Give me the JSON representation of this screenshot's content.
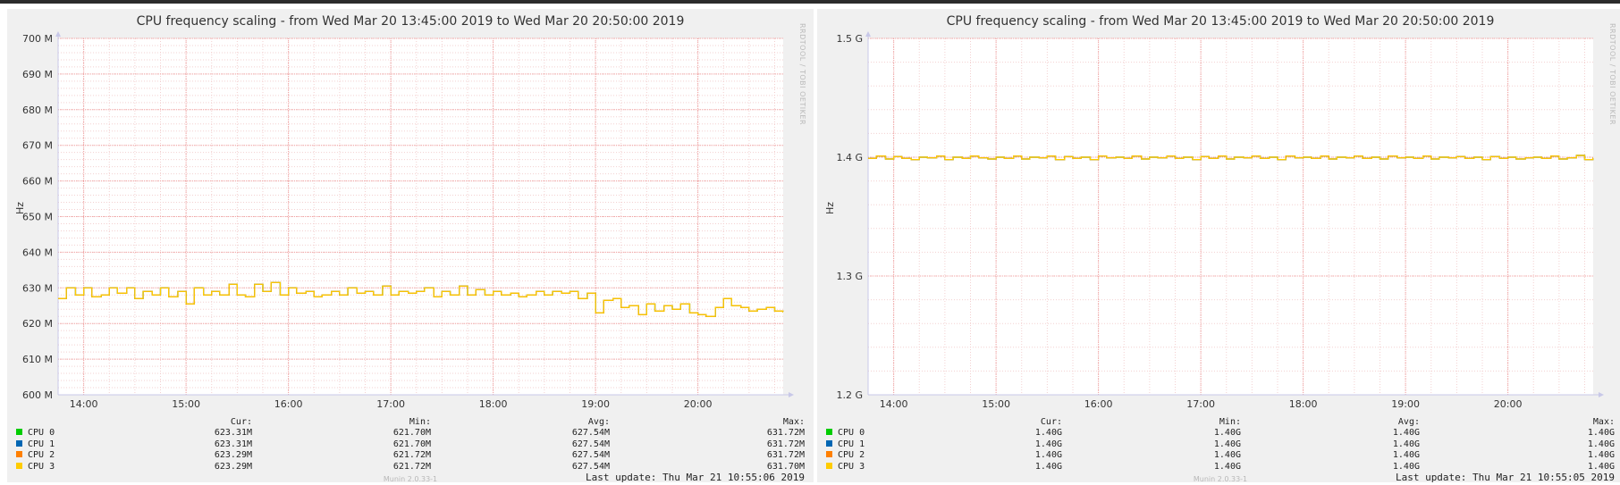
{
  "chart_data": [
    {
      "type": "line",
      "title": "CPU frequency scaling - from Wed Mar 20 13:45:00 2019 to Wed Mar 20 20:50:00 2019",
      "ylabel": "Hz",
      "ylim": [
        600000000,
        700000000
      ],
      "yticks": [
        600000000,
        610000000,
        620000000,
        630000000,
        640000000,
        650000000,
        660000000,
        670000000,
        680000000,
        690000000,
        700000000
      ],
      "ytick_labels": [
        "600 M",
        "610 M",
        "620 M",
        "630 M",
        "640 M",
        "650 M",
        "660 M",
        "670 M",
        "680 M",
        "690 M",
        "700 M"
      ],
      "xlim": [
        13.75,
        20.833
      ],
      "xticks": [
        14,
        15,
        16,
        17,
        18,
        19,
        20
      ],
      "xtick_labels": [
        "14:00",
        "15:00",
        "16:00",
        "17:00",
        "18:00",
        "19:00",
        "20:00"
      ],
      "grid": true,
      "series": [
        {
          "name": "CPU 0",
          "color": "#00cc00",
          "cur": "623.31M",
          "min": "621.70M",
          "avg": "627.54M",
          "max": "631.72M"
        },
        {
          "name": "CPU 1",
          "color": "#0066b3",
          "cur": "623.31M",
          "min": "621.70M",
          "avg": "627.54M",
          "max": "631.72M"
        },
        {
          "name": "CPU 2",
          "color": "#ff8000",
          "cur": "623.29M",
          "min": "621.72M",
          "avg": "627.54M",
          "max": "631.72M"
        },
        {
          "name": "CPU 3",
          "color": "#ffcc00",
          "cur": "623.29M",
          "min": "621.72M",
          "avg": "627.54M",
          "max": "631.70M"
        }
      ],
      "x": [
        13.75,
        13.83,
        13.92,
        14.0,
        14.08,
        14.17,
        14.25,
        14.33,
        14.42,
        14.5,
        14.58,
        14.67,
        14.75,
        14.83,
        14.92,
        15.0,
        15.08,
        15.17,
        15.25,
        15.33,
        15.42,
        15.5,
        15.58,
        15.67,
        15.75,
        15.83,
        15.92,
        16.0,
        16.08,
        16.17,
        16.25,
        16.33,
        16.42,
        16.5,
        16.58,
        16.67,
        16.75,
        16.83,
        16.92,
        17.0,
        17.08,
        17.17,
        17.25,
        17.33,
        17.42,
        17.5,
        17.58,
        17.67,
        17.75,
        17.83,
        17.92,
        18.0,
        18.08,
        18.17,
        18.25,
        18.33,
        18.42,
        18.5,
        18.58,
        18.67,
        18.75,
        18.83,
        18.92,
        19.0,
        19.08,
        19.17,
        19.25,
        19.33,
        19.42,
        19.5,
        19.58,
        19.67,
        19.75,
        19.83,
        19.92,
        20.0,
        20.08,
        20.17,
        20.25,
        20.33,
        20.42,
        20.5,
        20.58,
        20.67,
        20.75,
        20.83
      ],
      "values": [
        627000000,
        630000000,
        628000000,
        630000000,
        627500000,
        628000000,
        630000000,
        628500000,
        630000000,
        627000000,
        629000000,
        628000000,
        630000000,
        627500000,
        629000000,
        625500000,
        630000000,
        628000000,
        629000000,
        628000000,
        631000000,
        628000000,
        627500000,
        631000000,
        629000000,
        631500000,
        628000000,
        630000000,
        628500000,
        629000000,
        627500000,
        628000000,
        629000000,
        628000000,
        630000000,
        628500000,
        629000000,
        628000000,
        630500000,
        628000000,
        629000000,
        628500000,
        629000000,
        630000000,
        627500000,
        629000000,
        628000000,
        630500000,
        628000000,
        629500000,
        628000000,
        629000000,
        628000000,
        628500000,
        627500000,
        628000000,
        629000000,
        628000000,
        629000000,
        628500000,
        629000000,
        627000000,
        628500000,
        623000000,
        626500000,
        627000000,
        624500000,
        625000000,
        622500000,
        625500000,
        623500000,
        625000000,
        624000000,
        625500000,
        623000000,
        622500000,
        622000000,
        624500000,
        627000000,
        625000000,
        624500000,
        623500000,
        624000000,
        624500000,
        623500000,
        623300000
      ],
      "legend": {
        "cur": "Cur:",
        "min": "Min:",
        "avg": "Avg:",
        "max": "Max:"
      },
      "last_update": "Last update:  Thu Mar 21 10:55:06 2019"
    },
    {
      "type": "line",
      "title": "CPU frequency scaling - from Wed Mar 20 13:45:00 2019 to Wed Mar 20 20:50:00 2019",
      "ylabel": "Hz",
      "ylim": [
        1200000000,
        1500000000
      ],
      "yticks": [
        1200000000,
        1300000000,
        1400000000,
        1500000000
      ],
      "ytick_labels": [
        "1.2 G",
        "1.3 G",
        "1.4 G",
        "1.5 G"
      ],
      "xlim": [
        13.75,
        20.833
      ],
      "xticks": [
        14,
        15,
        16,
        17,
        18,
        19,
        20
      ],
      "xtick_labels": [
        "14:00",
        "15:00",
        "16:00",
        "17:00",
        "18:00",
        "19:00",
        "20:00"
      ],
      "grid": true,
      "series": [
        {
          "name": "CPU 0",
          "color": "#00cc00",
          "cur": "1.40G",
          "min": "1.40G",
          "avg": "1.40G",
          "max": "1.40G"
        },
        {
          "name": "CPU 1",
          "color": "#0066b3",
          "cur": "1.40G",
          "min": "1.40G",
          "avg": "1.40G",
          "max": "1.40G"
        },
        {
          "name": "CPU 2",
          "color": "#ff8000",
          "cur": "1.40G",
          "min": "1.40G",
          "avg": "1.40G",
          "max": "1.40G"
        },
        {
          "name": "CPU 3",
          "color": "#ffcc00",
          "cur": "1.40G",
          "min": "1.40G",
          "avg": "1.40G",
          "max": "1.40G"
        }
      ],
      "x": [
        13.75,
        13.83,
        13.92,
        14.0,
        14.08,
        14.17,
        14.25,
        14.33,
        14.42,
        14.5,
        14.58,
        14.67,
        14.75,
        14.83,
        14.92,
        15.0,
        15.08,
        15.17,
        15.25,
        15.33,
        15.42,
        15.5,
        15.58,
        15.67,
        15.75,
        15.83,
        15.92,
        16.0,
        16.08,
        16.17,
        16.25,
        16.33,
        16.42,
        16.5,
        16.58,
        16.67,
        16.75,
        16.83,
        16.92,
        17.0,
        17.08,
        17.17,
        17.25,
        17.33,
        17.42,
        17.5,
        17.58,
        17.67,
        17.75,
        17.83,
        17.92,
        18.0,
        18.08,
        18.17,
        18.25,
        18.33,
        18.42,
        18.5,
        18.58,
        18.67,
        18.75,
        18.83,
        18.92,
        19.0,
        19.08,
        19.17,
        19.25,
        19.33,
        19.42,
        19.5,
        19.58,
        19.67,
        19.75,
        19.83,
        19.92,
        20.0,
        20.08,
        20.17,
        20.25,
        20.33,
        20.42,
        20.5,
        20.58,
        20.67,
        20.75,
        20.83
      ],
      "values": [
        1399000000,
        1401000000,
        1398500000,
        1400500000,
        1399000000,
        1398000000,
        1400000000,
        1399500000,
        1401000000,
        1398000000,
        1400000000,
        1399000000,
        1401000000,
        1399500000,
        1398500000,
        1400000000,
        1399000000,
        1401000000,
        1398500000,
        1400000000,
        1399500000,
        1401000000,
        1398000000,
        1400500000,
        1399000000,
        1400000000,
        1398000000,
        1401000000,
        1399500000,
        1400000000,
        1399000000,
        1401000000,
        1398500000,
        1400000000,
        1399500000,
        1401000000,
        1399000000,
        1400000000,
        1398000000,
        1400500000,
        1399000000,
        1401000000,
        1398500000,
        1400000000,
        1399500000,
        1401000000,
        1399000000,
        1400000000,
        1398000000,
        1401000000,
        1399500000,
        1400000000,
        1399000000,
        1401000000,
        1398500000,
        1400000000,
        1399500000,
        1401000000,
        1399000000,
        1400000000,
        1398500000,
        1401000000,
        1399500000,
        1400000000,
        1399000000,
        1401000000,
        1398500000,
        1400000000,
        1399500000,
        1400500000,
        1399000000,
        1400000000,
        1398000000,
        1400500000,
        1399000000,
        1400000000,
        1398500000,
        1399500000,
        1400000000,
        1399000000,
        1401000000,
        1398500000,
        1399500000,
        1401500000,
        1398000000,
        1399000000
      ],
      "legend": {
        "cur": "Cur:",
        "min": "Min:",
        "avg": "Avg:",
        "max": "Max:"
      },
      "last_update": "Last update:  Thu Mar 21 10:55:05 2019"
    }
  ]
}
